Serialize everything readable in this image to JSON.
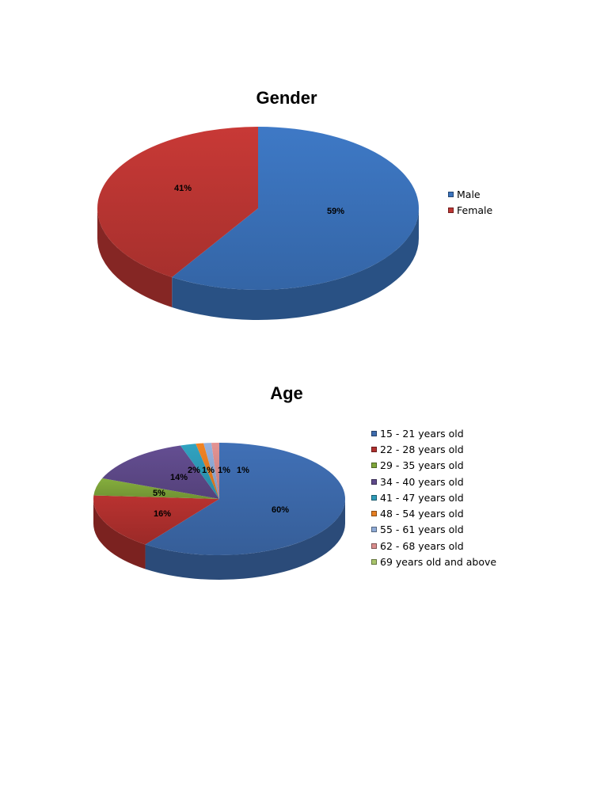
{
  "chart_data": [
    {
      "type": "pie",
      "title": "Gender",
      "legend_position": "right",
      "categories": [
        "Male",
        "Female"
      ],
      "values": [
        59,
        41
      ],
      "labels": [
        "59%",
        "41%"
      ],
      "colors": [
        "#3B73BD",
        "#BE3633"
      ]
    },
    {
      "type": "pie",
      "title": "Age",
      "legend_position": "right",
      "categories": [
        "15 - 21 years old",
        "22 - 28 years old",
        "29 - 35 years old",
        "34 - 40 years old",
        "41 - 47 years old",
        "48 - 54 years old",
        "55 - 61 years old",
        "62 - 68 years old",
        "69 years old and above"
      ],
      "values": [
        60,
        16,
        5,
        14,
        2,
        1,
        1,
        1,
        0
      ],
      "labels": [
        "60%",
        "16%",
        "5%",
        "14%",
        "2%",
        "1%",
        "1%",
        "1%",
        ""
      ],
      "colors": [
        "#3D6BAD",
        "#B0302E",
        "#7FA63A",
        "#5F4A8B",
        "#2E9BB8",
        "#E67E22",
        "#8EAAD6",
        "#D98C8C",
        "#A8C46B"
      ]
    }
  ]
}
